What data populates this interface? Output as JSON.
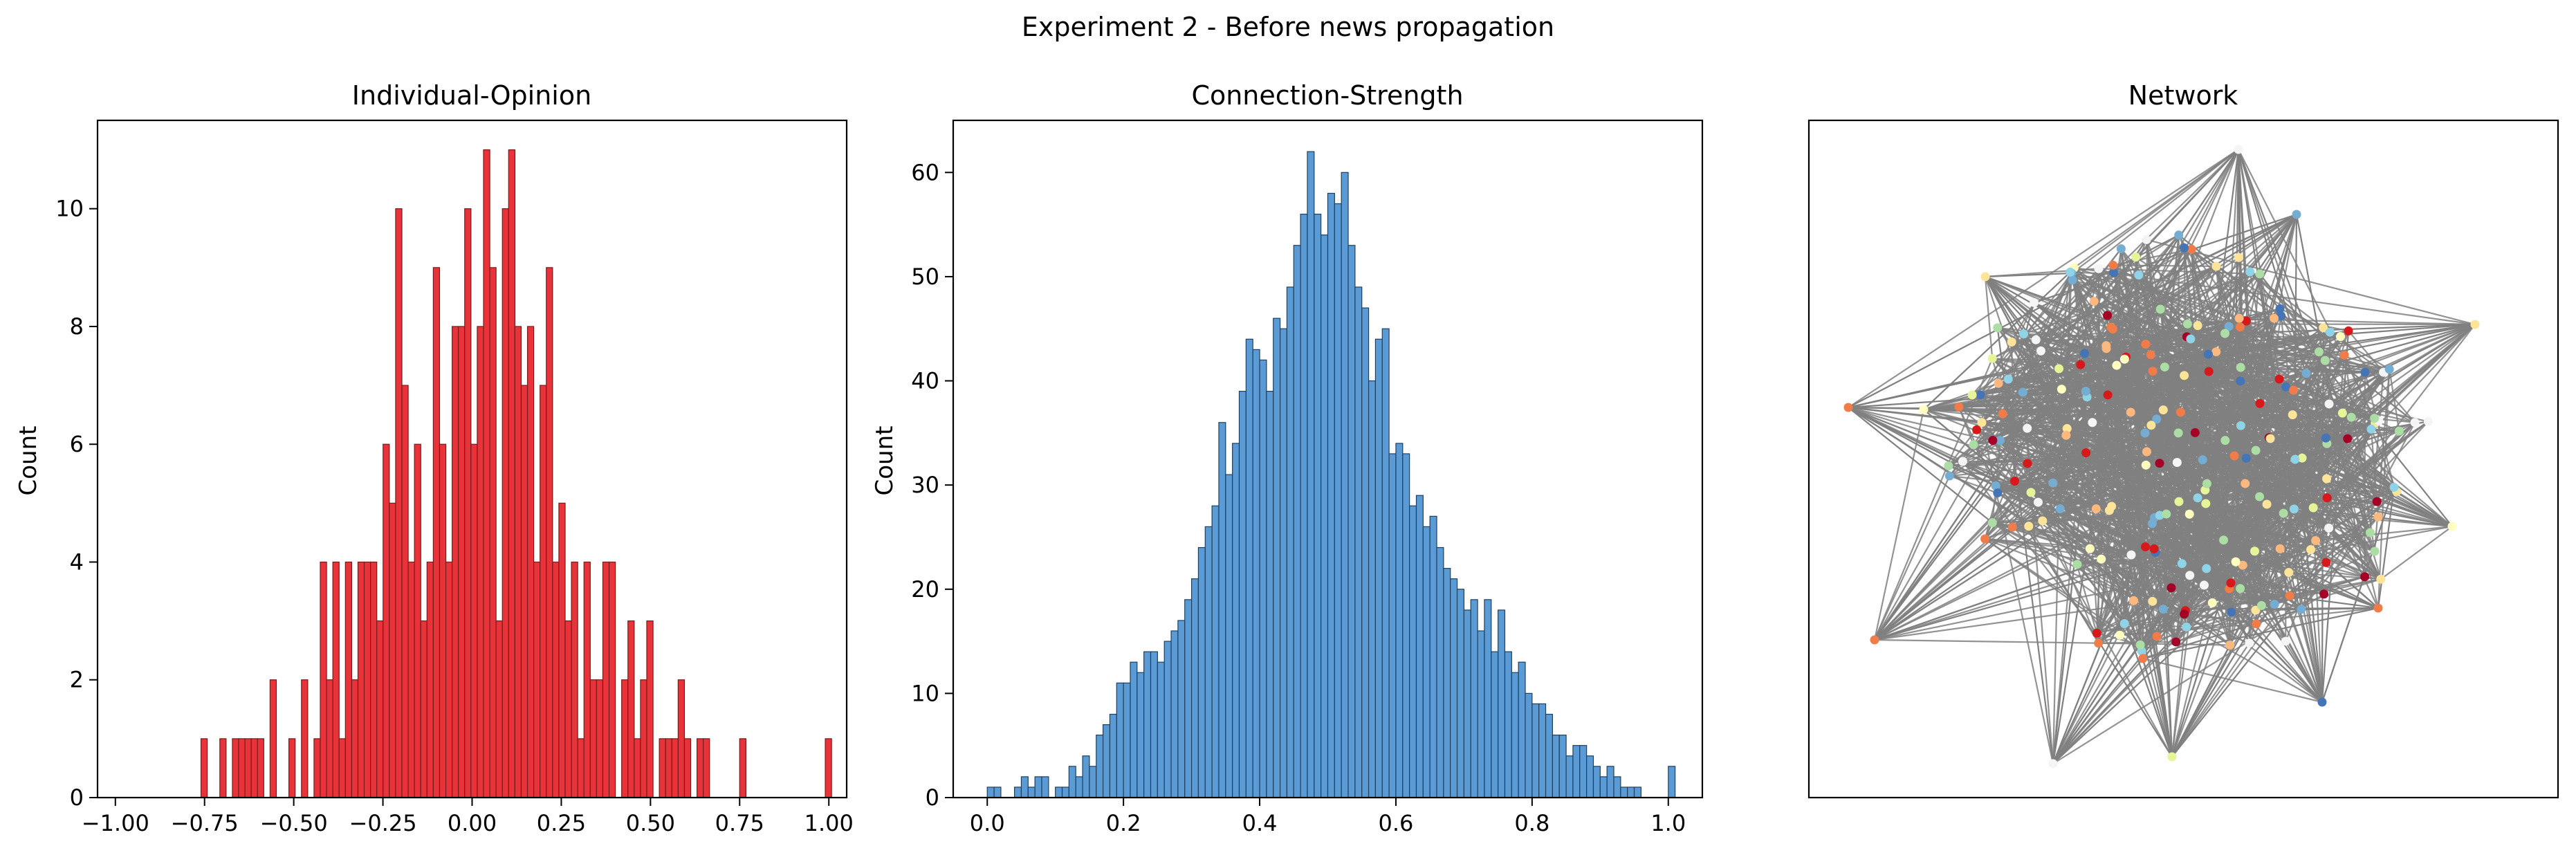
{
  "figure": {
    "suptitle": "Experiment 2 - Before news propagation"
  },
  "chart_data": [
    {
      "type": "bar",
      "title": "Individual-Opinion",
      "xlabel": "",
      "ylabel": "Count",
      "xlim": [
        -1.05,
        1.05
      ],
      "ylim": [
        0,
        11.5
      ],
      "xticks": [
        -1.0,
        -0.75,
        -0.5,
        -0.25,
        0.0,
        0.25,
        0.5,
        0.75,
        1.0
      ],
      "xtick_labels": [
        "−1.00",
        "−0.75",
        "−0.50",
        "−0.25",
        "0.00",
        "0.25",
        "0.50",
        "0.75",
        "1.00"
      ],
      "yticks": [
        0,
        2,
        4,
        6,
        8,
        10
      ],
      "ytick_labels": [
        "0",
        "2",
        "4",
        "6",
        "8",
        "10"
      ],
      "bin_start": -0.76,
      "bin_width": 0.0176,
      "counts": [
        1,
        0,
        0,
        1,
        0,
        1,
        1,
        1,
        1,
        1,
        0,
        2,
        0,
        0,
        1,
        0,
        2,
        0,
        1,
        4,
        2,
        4,
        1,
        4,
        2,
        4,
        4,
        4,
        3,
        6,
        5,
        10,
        7,
        4,
        6,
        3,
        4,
        9,
        6,
        4,
        8,
        8,
        10,
        6,
        8,
        11,
        9,
        3,
        10,
        11,
        8,
        7,
        8,
        4,
        7,
        9,
        4,
        5,
        3,
        4,
        1,
        4,
        2,
        2,
        4,
        4,
        0,
        2,
        3,
        1,
        2,
        3,
        0,
        1,
        1,
        1,
        2,
        1,
        0,
        1,
        1,
        0,
        0,
        0,
        0,
        0,
        0,
        0,
        0,
        0,
        0,
        0,
        0,
        0,
        0,
        0,
        0,
        0,
        0,
        0,
        0,
        0,
        0,
        0,
        0,
        0,
        0,
        0,
        0,
        0,
        0,
        0,
        0,
        0,
        0,
        0,
        0,
        0,
        0,
        0,
        0,
        0,
        0,
        0,
        0,
        0,
        0,
        0,
        0,
        0,
        0,
        0,
        0,
        0,
        0
      ],
      "extra_bins": [
        {
          "x": 0.75,
          "count": 1
        },
        {
          "x": 0.99,
          "count": 1
        }
      ],
      "bar_color": "#e8333a",
      "edge_color": "#7a1a1a",
      "grid": false
    },
    {
      "type": "bar",
      "title": "Connection-Strength",
      "xlabel": "",
      "ylabel": "Count",
      "xlim": [
        -0.05,
        1.05
      ],
      "ylim": [
        0,
        65
      ],
      "xticks": [
        0.0,
        0.2,
        0.4,
        0.6,
        0.8,
        1.0
      ],
      "xtick_labels": [
        "0.0",
        "0.2",
        "0.4",
        "0.6",
        "0.8",
        "1.0"
      ],
      "yticks": [
        0,
        10,
        20,
        30,
        40,
        50,
        60
      ],
      "ytick_labels": [
        "0",
        "10",
        "20",
        "30",
        "40",
        "50",
        "60"
      ],
      "bin_start": 0.0,
      "bin_width": 0.01,
      "counts": [
        1,
        1,
        0,
        0,
        1,
        2,
        1,
        2,
        2,
        0,
        1,
        1,
        3,
        2,
        4,
        3,
        6,
        7,
        8,
        11,
        11,
        13,
        12,
        14,
        14,
        13,
        15,
        16,
        17,
        19,
        21,
        24,
        26,
        28,
        36,
        31,
        34,
        39,
        44,
        43,
        42,
        39,
        46,
        45,
        49,
        53,
        56,
        62,
        56,
        54,
        58,
        57,
        60,
        53,
        49,
        47,
        40,
        44,
        45,
        33,
        34,
        33,
        28,
        29,
        26,
        27,
        24,
        22,
        21,
        20,
        18,
        19,
        16,
        19,
        14,
        18,
        14,
        12,
        13,
        10,
        9,
        9,
        8,
        6,
        6,
        4,
        5,
        5,
        4,
        3,
        2,
        3,
        2,
        1,
        1,
        1,
        0,
        0,
        0,
        0,
        3
      ],
      "bar_color": "#5b9bd5",
      "edge_color": "#1f3f5f",
      "grid": false
    },
    {
      "type": "network",
      "title": "Network",
      "edge_color": "#808080",
      "node_palette": [
        "#fde499",
        "#fcb87e",
        "#f07c4a",
        "#d7191c",
        "#a50026",
        "#ffffbf",
        "#e6f598",
        "#abdda4",
        "#8fd3e6",
        "#74add1",
        "#4575b4",
        "#f5f5f5"
      ]
    }
  ]
}
